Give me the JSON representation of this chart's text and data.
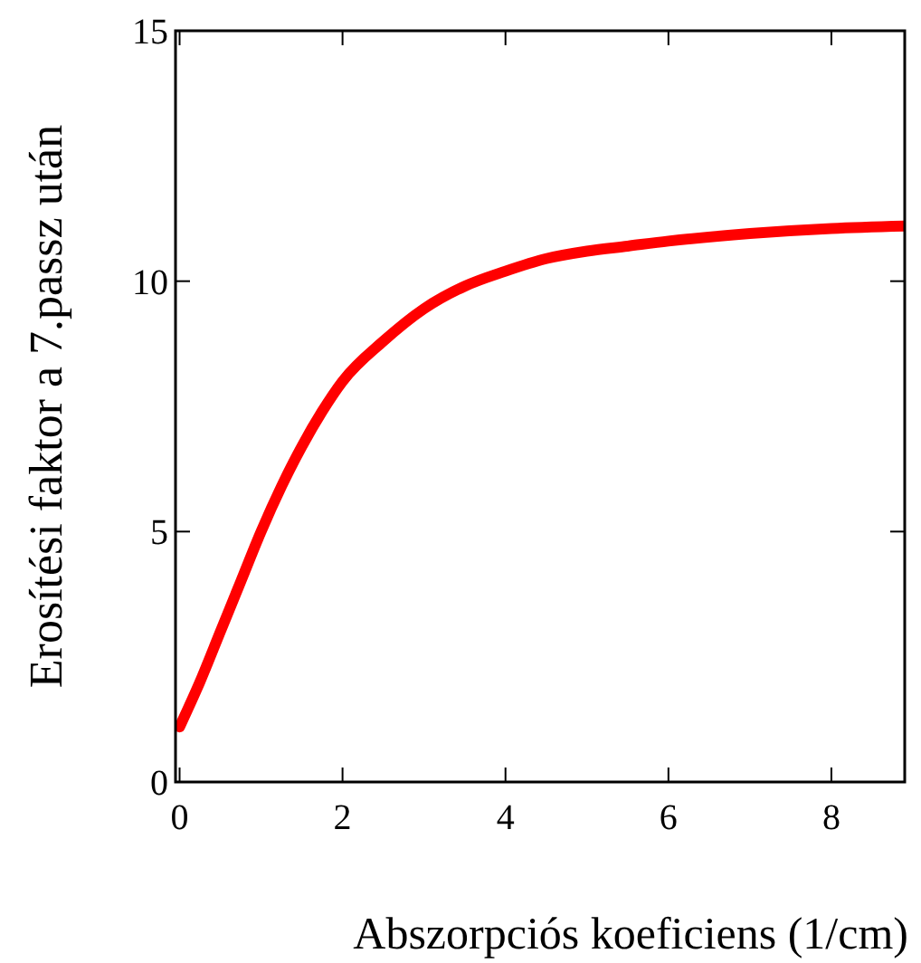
{
  "chart_data": {
    "type": "line",
    "xlabel": "Abszorpciós koeficiens (1/cm)",
    "ylabel": "Erosítési faktor a 7.passz után",
    "x": [
      0,
      0.25,
      0.5,
      0.75,
      1,
      1.25,
      1.5,
      1.75,
      2,
      2.5,
      3,
      3.5,
      4,
      4.5,
      5,
      5.5,
      6,
      7,
      8,
      8.9
    ],
    "series": [
      {
        "color": "#ff0000",
        "values": [
          1.1,
          2,
          3,
          4,
          5,
          5.9,
          6.7,
          7.4,
          8,
          8.8,
          9.45,
          9.9,
          10.2,
          10.45,
          10.6,
          10.7,
          10.8,
          10.95,
          11.05,
          11.1
        ]
      }
    ],
    "xlim": [
      -0.05,
      8.9
    ],
    "ylim": [
      0,
      15
    ],
    "xticks": [
      0,
      2,
      4,
      6,
      8
    ],
    "yticks": [
      0,
      5,
      10,
      15
    ],
    "grid": false,
    "line_style": "solid"
  }
}
